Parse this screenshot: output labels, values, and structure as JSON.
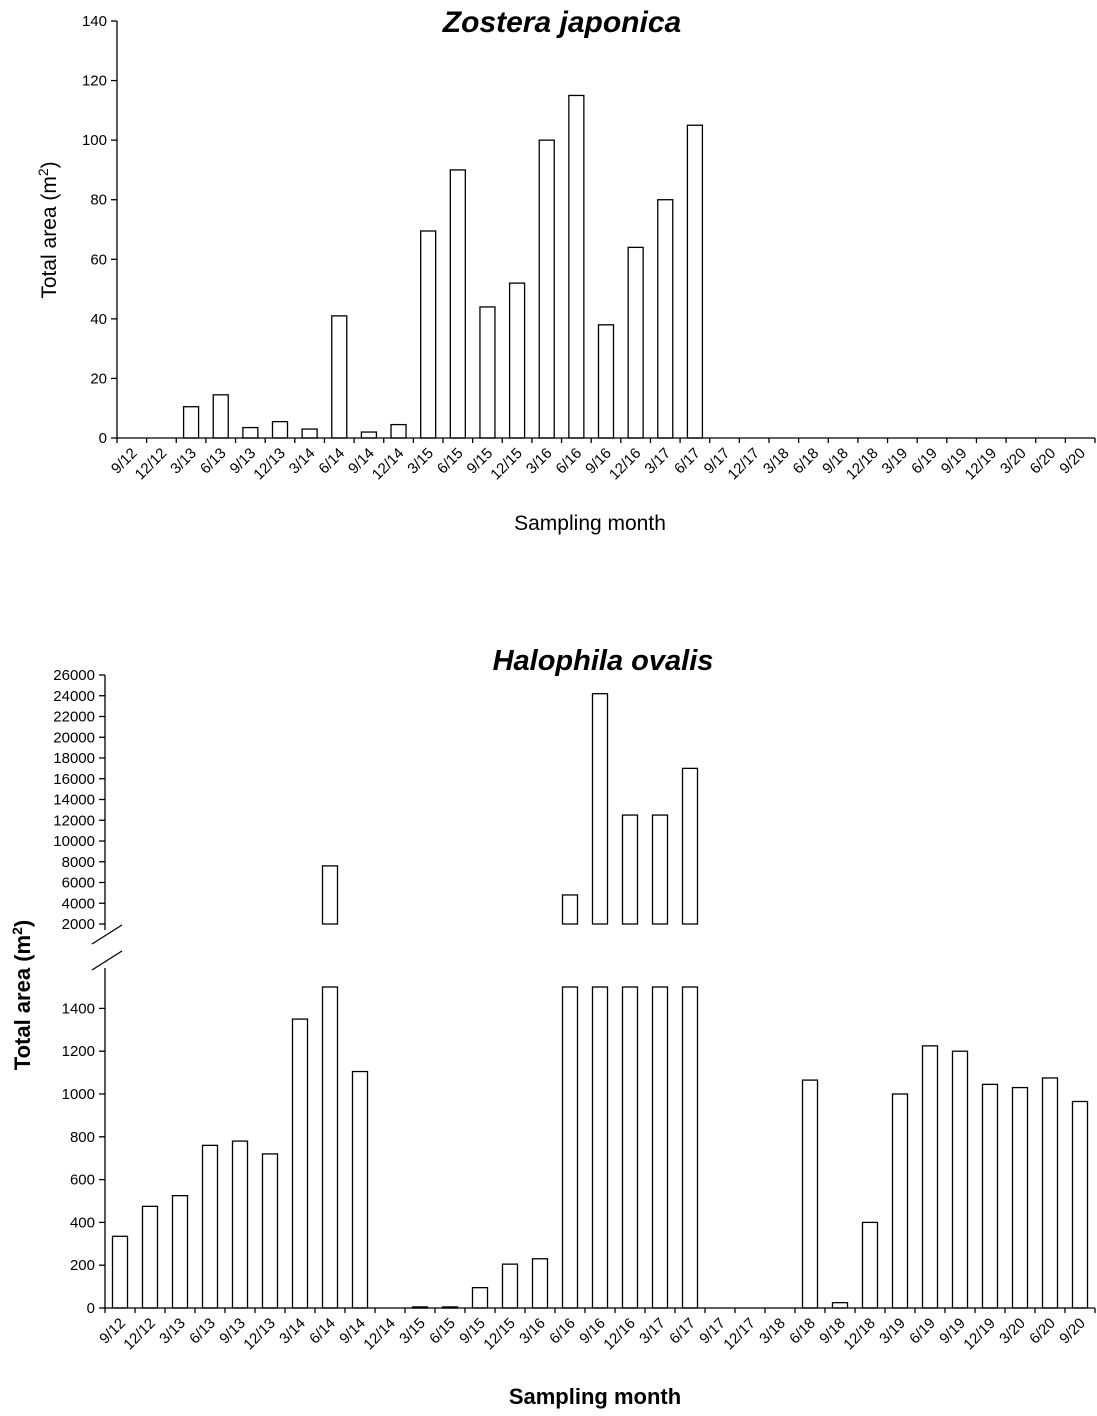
{
  "chart_data": [
    {
      "type": "bar",
      "title": "Zostera japonica",
      "xlabel": "Sampling month",
      "ylabel_main": "Total area (m",
      "ylabel_sup": "2",
      "ylabel_close": ")",
      "ylim": [
        0,
        140
      ],
      "yticks": [
        0,
        20,
        40,
        60,
        80,
        100,
        120,
        140
      ],
      "categories": [
        "9/12",
        "12/12",
        "3/13",
        "6/13",
        "9/13",
        "12/13",
        "3/14",
        "6/14",
        "9/14",
        "12/14",
        "3/15",
        "6/15",
        "9/15",
        "12/15",
        "3/16",
        "6/16",
        "9/16",
        "12/16",
        "3/17",
        "6/17",
        "9/17",
        "12/17",
        "3/18",
        "6/18",
        "9/18",
        "12/18",
        "3/19",
        "6/19",
        "9/19",
        "12/19",
        "3/20",
        "6/20",
        "9/20"
      ],
      "values": [
        0,
        0,
        10.5,
        14.5,
        3.5,
        5.5,
        3,
        41,
        2,
        4.5,
        69.5,
        90,
        44,
        52,
        100,
        115,
        38,
        64,
        80,
        105,
        0,
        0,
        0,
        0,
        0,
        0,
        0,
        0,
        0,
        0,
        0,
        0,
        0
      ]
    },
    {
      "type": "bar",
      "title": "Halophila ovalis",
      "xlabel": "Sampling month",
      "ylabel_main": "Total area (m",
      "ylabel_sup": "2",
      "ylabel_close": ")",
      "broken_axis": true,
      "ylim_lower": [
        0,
        1500
      ],
      "ylim_upper": [
        2000,
        26000
      ],
      "yticks_lower": [
        0,
        200,
        400,
        600,
        800,
        1000,
        1200,
        1400
      ],
      "yticks_upper": [
        2000,
        4000,
        6000,
        8000,
        10000,
        12000,
        14000,
        16000,
        18000,
        20000,
        22000,
        24000,
        26000
      ],
      "categories": [
        "9/12",
        "12/12",
        "3/13",
        "6/13",
        "9/13",
        "12/13",
        "3/14",
        "6/14",
        "9/14",
        "12/14",
        "3/15",
        "6/15",
        "9/15",
        "12/15",
        "3/16",
        "6/16",
        "9/16",
        "12/16",
        "3/17",
        "6/17",
        "9/17",
        "12/17",
        "3/18",
        "6/18",
        "9/18",
        "12/18",
        "3/19",
        "6/19",
        "9/19",
        "12/19",
        "3/20",
        "6/20",
        "9/20"
      ],
      "values": [
        335,
        475,
        525,
        760,
        780,
        720,
        1350,
        7600,
        1105,
        0,
        5,
        5,
        95,
        205,
        230,
        4800,
        24200,
        12500,
        12500,
        17000,
        0,
        0,
        0,
        1065,
        25,
        400,
        1000,
        1225,
        1200,
        1045,
        1030,
        1075,
        965
      ]
    }
  ]
}
